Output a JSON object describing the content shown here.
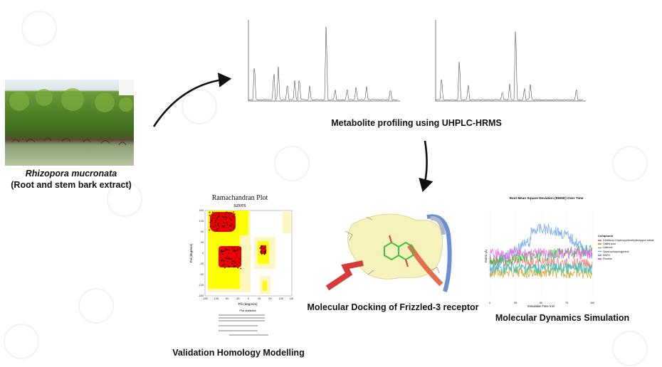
{
  "source": {
    "species": "Rhizopora mucronata",
    "extract": "(Root and stem bark extract)"
  },
  "steps": {
    "metabolite": "Metabolite profiling using UHPLC-HRMS",
    "homology": "Validation Homology Modelling",
    "docking": "Molecular Docking of Frizzled-3 receptor",
    "dynamics": "Molecular Dynamics Simulation"
  },
  "ramachandran": {
    "title": "Ramachandran Plot",
    "subtitle": "saves",
    "xlabel": "Phi (degrees)",
    "ylabel": "Psi (degrees)",
    "ticks": [
      "-180",
      "-135",
      "-90",
      "-45",
      "0",
      "45",
      "90",
      "135",
      "180"
    ],
    "stats_heading": "Plot statistics"
  },
  "rmsd": {
    "title": "Root Mean Square Deviation (RMSD) Over Time",
    "xlabel": "Simulation Time (ns)",
    "ylabel": "RMSD (Å)",
    "xticks": [
      "0",
      "25",
      "50",
      "75",
      "100"
    ],
    "legend_title": "Compound",
    "legend": [
      {
        "name": "3-Methoxy-4-hydroxyphenethyleneglycol sulfate",
        "color": "#f8766d"
      },
      {
        "name": "Caffeic acid",
        "color": "#c9a227"
      },
      {
        "name": "Catechol",
        "color": "#2fb34a"
      },
      {
        "name": "Glycerophosphoglycerol",
        "color": "#20c3c0"
      },
      {
        "name": "MHPG",
        "color": "#6ea3f5"
      },
      {
        "name": "Pinoxide",
        "color": "#f064e0"
      }
    ]
  }
}
